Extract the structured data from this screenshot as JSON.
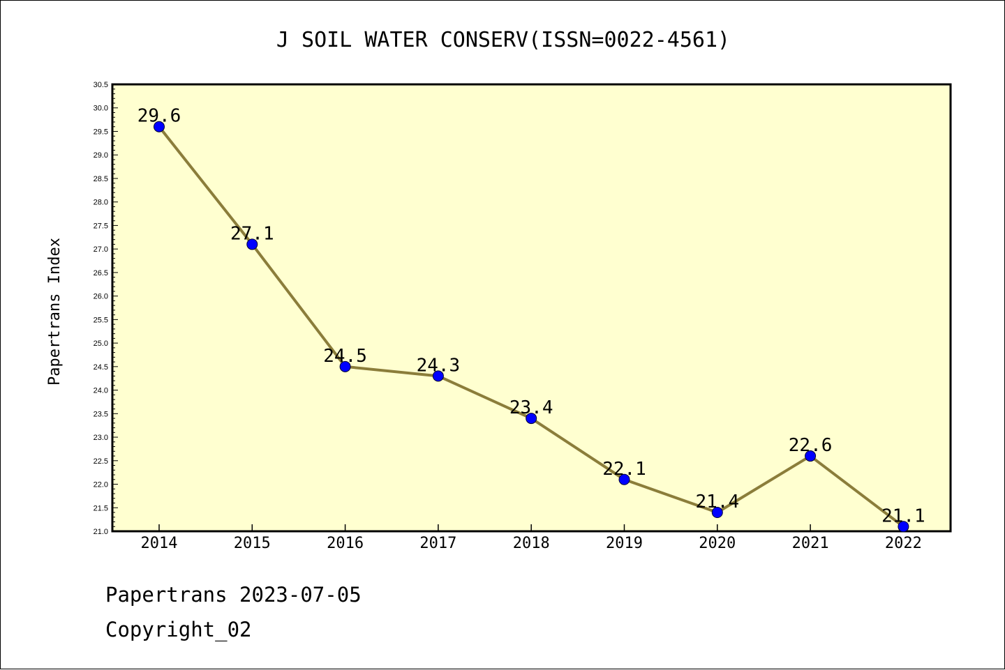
{
  "chart_data": {
    "type": "line",
    "title": "J SOIL WATER CONSERV(ISSN=0022-4561)",
    "xlabel": "",
    "ylabel": "Papertrans Index",
    "categories": [
      "2014",
      "2015",
      "2016",
      "2017",
      "2018",
      "2019",
      "2020",
      "2021",
      "2022"
    ],
    "series": [
      {
        "values": [
          29.6,
          27.1,
          24.5,
          24.3,
          23.4,
          22.1,
          21.4,
          22.6,
          21.1
        ],
        "labels": [
          "29.6",
          "27.1",
          "24.5",
          "24.3",
          "23.4",
          "22.1",
          "21.4",
          "22.6",
          "21.1"
        ]
      }
    ],
    "ylim": [
      21.0,
      30.5
    ],
    "yticks": [
      "21.0",
      "21.5",
      "22.0",
      "22.5",
      "23.0",
      "23.5",
      "24.0",
      "24.5",
      "25.0",
      "25.5",
      "26.0",
      "26.5",
      "27.0",
      "27.5",
      "28.0",
      "28.5",
      "29.0",
      "29.5",
      "30.0",
      "30.5"
    ],
    "grid": false,
    "legend": "none",
    "colors": {
      "plot_background": "#ffffd0",
      "line": "#8b7d3a",
      "marker": "#0000ff"
    }
  },
  "footer": {
    "date_line": "Papertrans 2023-07-05",
    "copyright": "Copyright_02"
  }
}
